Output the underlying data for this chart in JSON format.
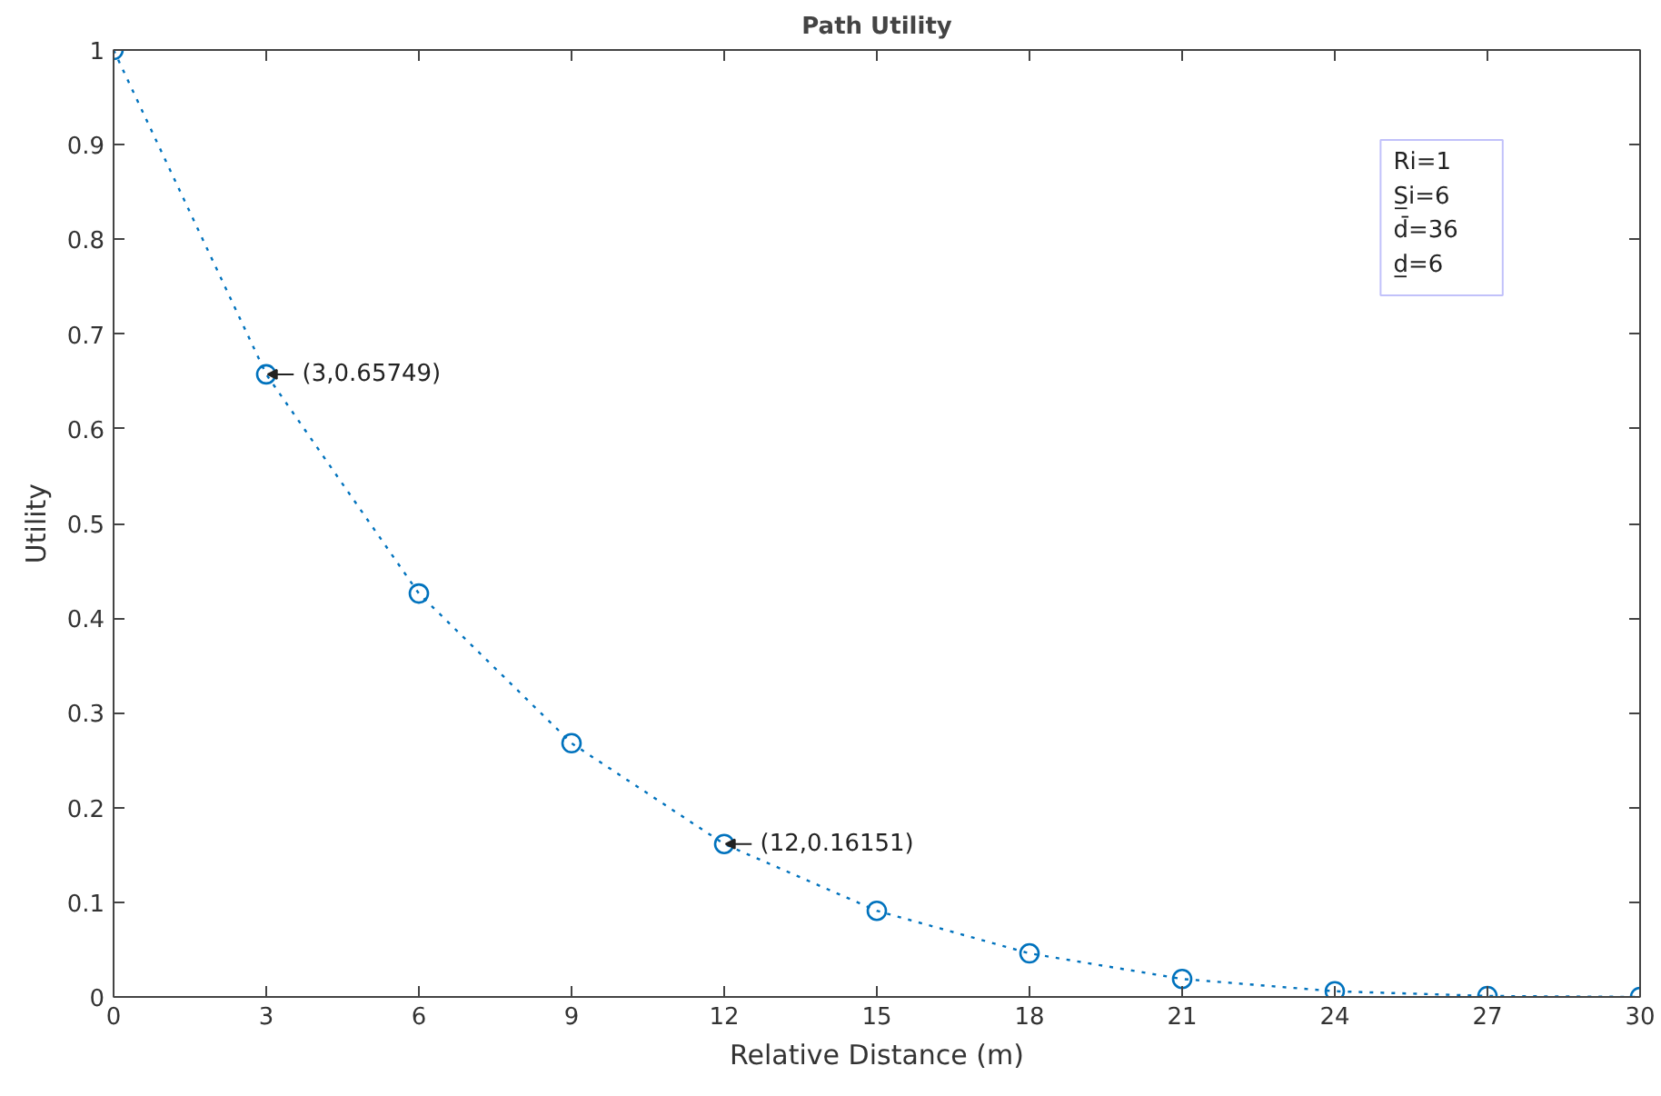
{
  "chart_data": {
    "type": "line",
    "title": "Path Utility",
    "xlabel": "Relative Distance (m)",
    "ylabel": "Utility",
    "x": [
      0,
      3,
      6,
      9,
      12,
      15,
      18,
      21,
      24,
      27,
      30
    ],
    "series": [
      {
        "color": "#0072bd",
        "values": [
          1,
          0.65749,
          0.426,
          0.268,
          0.16151,
          0.091,
          0.046,
          0.019,
          0.006,
          0.001,
          0.0
        ]
      }
    ],
    "marker": "circle",
    "line_style": "dotted",
    "grid": false,
    "xlim": [
      0,
      30
    ],
    "xticks": [
      0,
      3,
      6,
      9,
      12,
      15,
      18,
      21,
      24,
      27,
      30
    ],
    "ylim": [
      0,
      1
    ],
    "yticks": [
      0,
      0.1,
      0.2,
      0.3,
      0.4,
      0.5,
      0.6,
      0.7,
      0.8,
      0.9,
      1
    ],
    "annotations": [
      {
        "text": "(3,0.65749)",
        "x": 3,
        "y": 0.65749
      },
      {
        "text": "(12,0.16151)",
        "x": 12,
        "y": 0.16151
      },
      "Ri=1",
      "S̲i=6",
      "d̄=36",
      "d̲=6"
    ]
  }
}
